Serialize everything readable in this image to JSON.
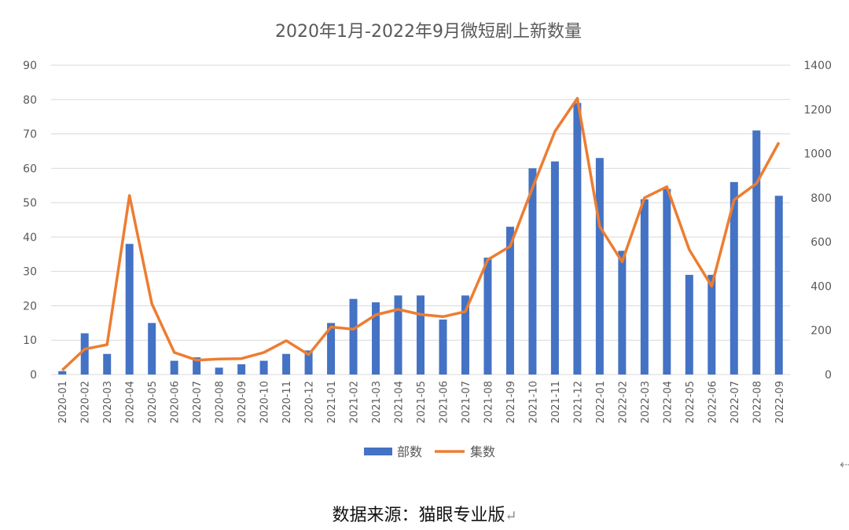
{
  "chart_data": {
    "type": "bar",
    "title": "2020年1月-2022年9月微短剧上新数量",
    "categories": [
      "2020-01",
      "2020-02",
      "2020-03",
      "2020-04",
      "2020-05",
      "2020-06",
      "2020-07",
      "2020-08",
      "2020-09",
      "2020-10",
      "2020-11",
      "2020-12",
      "2021-01",
      "2021-02",
      "2021-03",
      "2021-04",
      "2021-05",
      "2021-06",
      "2021-07",
      "2021-08",
      "2021-09",
      "2021-10",
      "2021-11",
      "2021-12",
      "2022-01",
      "2022-02",
      "2022-03",
      "2022-04",
      "2022-05",
      "2022-06",
      "2022-07",
      "2022-08",
      "2022-09"
    ],
    "series": [
      {
        "name": "部数",
        "type": "bar",
        "axis": "left",
        "color": "#4472c4",
        "values": [
          1,
          12,
          6,
          38,
          15,
          4,
          5,
          2,
          3,
          4,
          6,
          7,
          15,
          22,
          21,
          23,
          23,
          16,
          23,
          34,
          43,
          60,
          62,
          79,
          63,
          36,
          51,
          54,
          29,
          29,
          56,
          71,
          52
        ]
      },
      {
        "name": "集数",
        "type": "line",
        "axis": "right",
        "color": "#ed7d31",
        "values": [
          20,
          115,
          135,
          810,
          320,
          100,
          65,
          70,
          72,
          100,
          153,
          90,
          215,
          205,
          270,
          295,
          272,
          262,
          285,
          520,
          580,
          845,
          1100,
          1250,
          670,
          510,
          800,
          850,
          565,
          400,
          790,
          865,
          1050
        ]
      }
    ],
    "ylim_left": [
      0,
      90
    ],
    "yticks_left": [
      0,
      10,
      20,
      30,
      40,
      50,
      60,
      70,
      80,
      90
    ],
    "ylim_right": [
      0,
      1400
    ],
    "yticks_right": [
      0,
      200,
      400,
      600,
      800,
      1000,
      1200,
      1400
    ],
    "grid": true,
    "legend": "bottom"
  },
  "source_text": "数据来源：猫眼专业版",
  "return_mark": "↵",
  "left_arrow": "⇠"
}
